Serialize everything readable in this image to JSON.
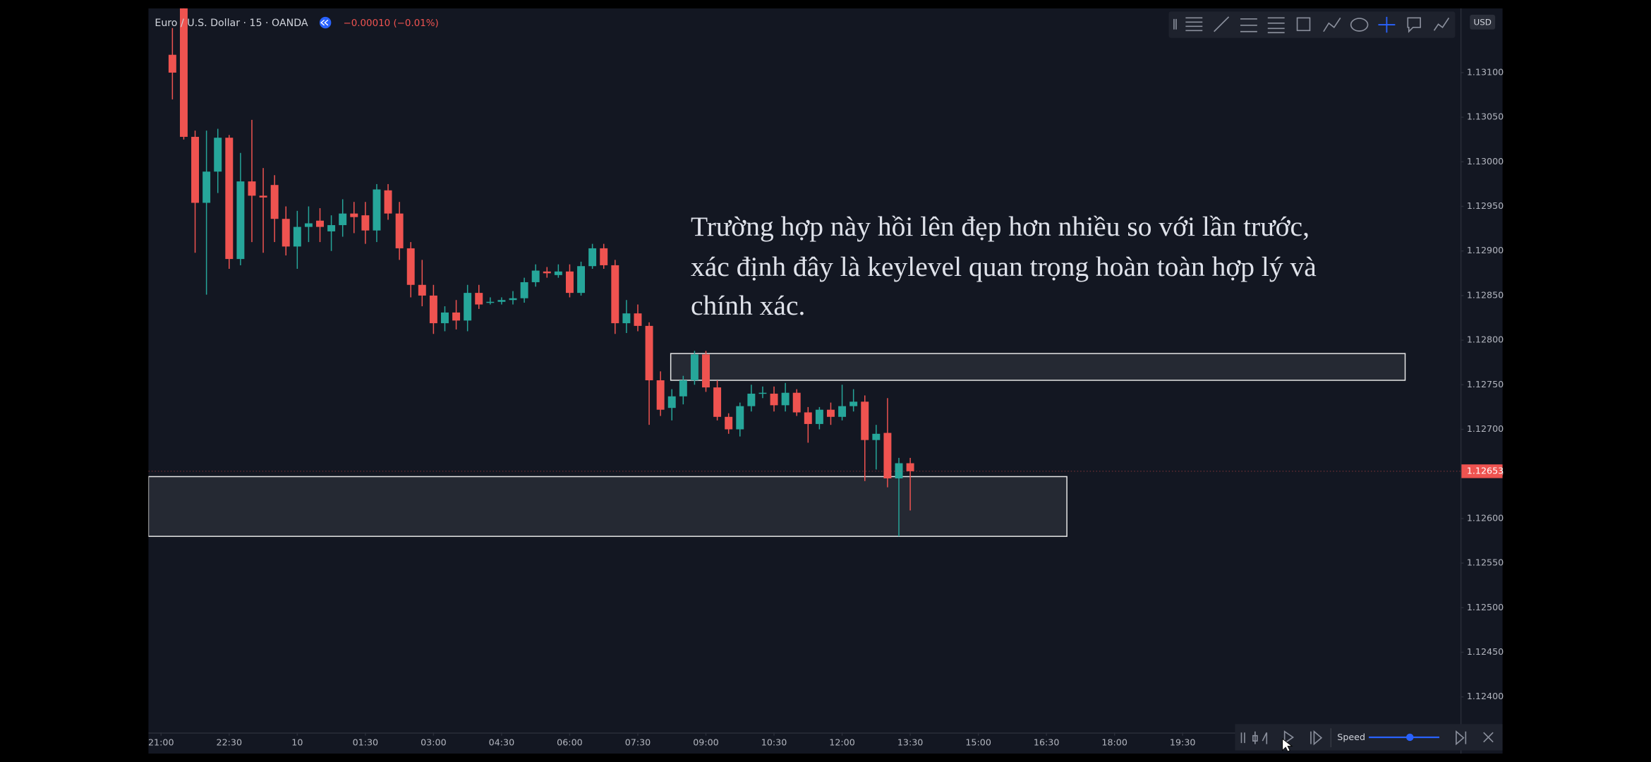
{
  "ui": {
    "symbol": "Euro / U.S. Dollar · 15 · OANDA",
    "change": "−0.00010 (−0.01%)",
    "currency": "USD",
    "speed": "Speed"
  },
  "chart_data": {
    "type": "candlestick",
    "annotation": [
      "Trường hợp này hồi lên đẹp hơn nhiều so với lần trước,",
      "xác định đây là keylevel quan trọng hoàn toàn hợp lý và",
      "chính xác."
    ],
    "up_color": "#26a69a",
    "down_color": "#ef5350",
    "grid": false,
    "xlim": [
      -1.11,
      114.47
    ],
    "xticks": [
      {
        "value": 0,
        "label": "21:00"
      },
      {
        "value": 6,
        "label": "22:30"
      },
      {
        "value": 12,
        "label": "10"
      },
      {
        "value": 18,
        "label": "01:30"
      },
      {
        "value": 24,
        "label": "03:00"
      },
      {
        "value": 30,
        "label": "04:30"
      },
      {
        "value": 36,
        "label": "06:00"
      },
      {
        "value": 42,
        "label": "07:30"
      },
      {
        "value": 48,
        "label": "09:00"
      },
      {
        "value": 54,
        "label": "10:30"
      },
      {
        "value": 60,
        "label": "12:00"
      },
      {
        "value": 66,
        "label": "13:30"
      },
      {
        "value": 72,
        "label": "15:00"
      },
      {
        "value": 78,
        "label": "16:30"
      },
      {
        "value": 84,
        "label": "18:00"
      },
      {
        "value": 90,
        "label": "19:30"
      }
    ],
    "ylim": [
      1.1236,
      1.13172
    ],
    "yticks": [
      {
        "value": 1.124,
        "label": "1.12400"
      },
      {
        "value": 1.1245,
        "label": "1.12450"
      },
      {
        "value": 1.125,
        "label": "1.12500"
      },
      {
        "value": 1.1255,
        "label": "1.12550"
      },
      {
        "value": 1.126,
        "label": "1.12600"
      },
      {
        "value": 1.1265,
        "label": "1.12650"
      },
      {
        "value": 1.127,
        "label": "1.12700"
      },
      {
        "value": 1.1275,
        "label": "1.12750"
      },
      {
        "value": 1.128,
        "label": "1.12800"
      },
      {
        "value": 1.1285,
        "label": "1.12850"
      },
      {
        "value": 1.129,
        "label": "1.12900"
      },
      {
        "value": 1.1295,
        "label": "1.12950"
      },
      {
        "value": 1.13,
        "label": "1.13000"
      },
      {
        "value": 1.1305,
        "label": "1.13050"
      },
      {
        "value": 1.131,
        "label": "1.13100"
      }
    ],
    "last_price": {
      "value": 1.12653,
      "label": "1.12653"
    },
    "zones": [
      {
        "x": [
          44.9,
          109.6
        ],
        "y": [
          1.12785,
          1.12755
        ]
      },
      {
        "x": [
          -1.11,
          79.8
        ],
        "y": [
          1.12647,
          1.1258
        ]
      }
    ],
    "x": [
      1,
      2,
      3,
      4,
      5,
      6,
      7,
      8,
      9,
      10,
      11,
      12,
      13,
      14,
      15,
      16,
      17,
      18,
      19,
      20,
      21,
      22,
      23,
      24,
      25,
      26,
      27,
      28,
      29,
      30,
      31,
      32,
      33,
      34,
      35,
      36,
      37,
      38,
      39,
      40,
      41,
      42,
      43,
      44,
      45,
      46,
      47,
      48,
      49,
      50,
      51,
      52,
      53,
      54,
      55,
      56,
      57,
      58,
      59,
      60,
      61,
      62,
      63,
      64,
      65,
      66
    ],
    "open": [
      1.1312,
      1.1319,
      1.13028,
      1.12954,
      1.12989,
      1.13027,
      1.12891,
      1.12978,
      1.12962,
      1.12974,
      1.12936,
      1.12905,
      1.12927,
      1.12934,
      1.12922,
      1.12929,
      1.12942,
      1.1294,
      1.12923,
      1.12968,
      1.12942,
      1.12903,
      1.12862,
      1.1285,
      1.12819,
      1.12831,
      1.12822,
      1.12853,
      1.12842,
      1.12843,
      1.12845,
      1.12847,
      1.12865,
      1.12877,
      1.12873,
      1.12877,
      1.12853,
      1.12883,
      1.12903,
      1.12884,
      1.12819,
      1.1283,
      1.12816,
      1.12755,
      1.12724,
      1.12737,
      1.12755,
      1.12784,
      1.12747,
      1.12714,
      1.127,
      1.12726,
      1.1274,
      1.1274,
      1.12727,
      1.12741,
      1.12719,
      1.12706,
      1.12722,
      1.12714,
      1.12726,
      1.12731,
      1.12688,
      1.12696,
      1.12645,
      1.12662
    ],
    "high": [
      1.1315,
      1.132,
      1.13035,
      1.13035,
      1.13037,
      1.1303,
      1.1301,
      1.13047,
      1.12993,
      1.12985,
      1.1295,
      1.12945,
      1.1295,
      1.12948,
      1.1294,
      1.12958,
      1.12955,
      1.12955,
      1.12975,
      1.12975,
      1.12955,
      1.1291,
      1.1289,
      1.12862,
      1.12838,
      1.12845,
      1.12862,
      1.12862,
      1.12848,
      1.12848,
      1.12855,
      1.1287,
      1.12885,
      1.12882,
      1.12885,
      1.12885,
      1.12888,
      1.12908,
      1.12908,
      1.1289,
      1.12845,
      1.1284,
      1.1282,
      1.12765,
      1.12745,
      1.1276,
      1.12788,
      1.12788,
      1.12755,
      1.12718,
      1.1273,
      1.1275,
      1.12748,
      1.12748,
      1.12752,
      1.12745,
      1.12725,
      1.12725,
      1.1273,
      1.1275,
      1.12745,
      1.12738,
      1.12705,
      1.12735,
      1.12668,
      1.12668
    ],
    "low": [
      1.1307,
      1.13025,
      1.12898,
      1.12851,
      1.12965,
      1.1288,
      1.12884,
      1.1291,
      1.12898,
      1.1291,
      1.12895,
      1.1288,
      1.1291,
      1.1291,
      1.129,
      1.12916,
      1.1292,
      1.12908,
      1.1291,
      1.12935,
      1.1289,
      1.12848,
      1.12838,
      1.12807,
      1.1281,
      1.12812,
      1.1281,
      1.12835,
      1.1284,
      1.1284,
      1.1284,
      1.12842,
      1.1286,
      1.1287,
      1.1287,
      1.12848,
      1.1285,
      1.1288,
      1.1288,
      1.12807,
      1.12808,
      1.1281,
      1.12705,
      1.12715,
      1.1271,
      1.12728,
      1.1275,
      1.12742,
      1.1271,
      1.12695,
      1.12692,
      1.1272,
      1.12735,
      1.1272,
      1.1272,
      1.12715,
      1.12685,
      1.127,
      1.12705,
      1.1271,
      1.1272,
      1.12642,
      1.12655,
      1.12635,
      1.1258,
      1.12609
    ],
    "close": [
      1.131,
      1.13028,
      1.12954,
      1.12989,
      1.13027,
      1.12891,
      1.12978,
      1.12962,
      1.1296,
      1.12936,
      1.12905,
      1.12927,
      1.12931,
      1.12927,
      1.12929,
      1.12942,
      1.12938,
      1.12923,
      1.12969,
      1.12942,
      1.12903,
      1.12862,
      1.1285,
      1.12819,
      1.12831,
      1.12822,
      1.12853,
      1.1284,
      1.12843,
      1.12845,
      1.12847,
      1.12865,
      1.12878,
      1.12875,
      1.12877,
      1.12853,
      1.12883,
      1.12903,
      1.12884,
      1.12819,
      1.1283,
      1.12816,
      1.12755,
      1.12722,
      1.12737,
      1.12755,
      1.12784,
      1.12747,
      1.12714,
      1.127,
      1.12726,
      1.1274,
      1.12741,
      1.12727,
      1.12741,
      1.12719,
      1.12706,
      1.12722,
      1.12714,
      1.12726,
      1.12731,
      1.12688,
      1.12695,
      1.12645,
      1.12662,
      1.12653
    ]
  }
}
